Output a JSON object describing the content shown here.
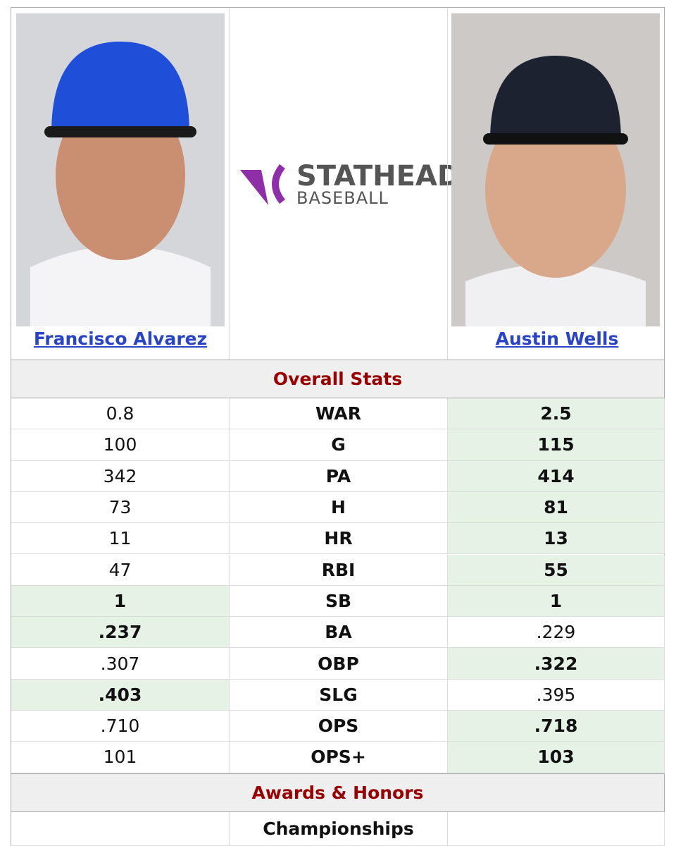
{
  "players": [
    {
      "name": "Francisco Alvarez",
      "cap_color": "#1f4fd8"
    },
    {
      "name": "Austin Wells",
      "cap_color": "#1c2230"
    }
  ],
  "logo": {
    "title": "STATHEAD",
    "subtitle": "BASEBALL"
  },
  "sections": [
    {
      "title": "Overall Stats",
      "rows": [
        {
          "stat": "WAR",
          "left": "0.8",
          "right": "2.5",
          "leader": "right"
        },
        {
          "stat": "G",
          "left": "100",
          "right": "115",
          "leader": "right"
        },
        {
          "stat": "PA",
          "left": "342",
          "right": "414",
          "leader": "right"
        },
        {
          "stat": "H",
          "left": "73",
          "right": "81",
          "leader": "right"
        },
        {
          "stat": "HR",
          "left": "11",
          "right": "13",
          "leader": "right"
        },
        {
          "stat": "RBI",
          "left": "47",
          "right": "55",
          "leader": "right"
        },
        {
          "stat": "SB",
          "left": "1",
          "right": "1",
          "leader": "both"
        },
        {
          "stat": "BA",
          "left": ".237",
          "right": ".229",
          "leader": "left"
        },
        {
          "stat": "OBP",
          "left": ".307",
          "right": ".322",
          "leader": "right"
        },
        {
          "stat": "SLG",
          "left": ".403",
          "right": ".395",
          "leader": "left"
        },
        {
          "stat": "OPS",
          "left": ".710",
          "right": ".718",
          "leader": "right"
        },
        {
          "stat": "OPS+",
          "left": "101",
          "right": "103",
          "leader": "right"
        }
      ]
    },
    {
      "title": "Awards & Honors",
      "rows": [
        {
          "stat": "Championships",
          "leader": "none"
        }
      ]
    }
  ]
}
